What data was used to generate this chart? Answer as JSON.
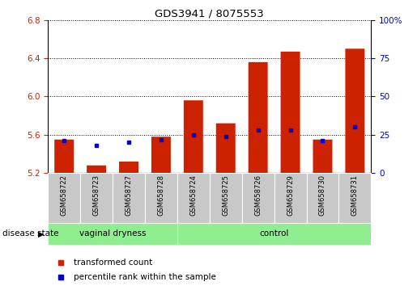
{
  "title": "GDS3941 / 8075553",
  "samples": [
    "GSM658722",
    "GSM658723",
    "GSM658727",
    "GSM658728",
    "GSM658724",
    "GSM658725",
    "GSM658726",
    "GSM658729",
    "GSM658730",
    "GSM658731"
  ],
  "group_labels": [
    "vaginal dryness",
    "control"
  ],
  "group1_count": 4,
  "group2_count": 6,
  "bar_bottom": 5.2,
  "bar_values": [
    5.55,
    5.28,
    5.32,
    5.58,
    5.96,
    5.72,
    6.36,
    6.47,
    5.55,
    6.5
  ],
  "percentile_values": [
    21,
    18,
    20,
    22,
    25,
    24,
    28,
    28,
    21,
    30
  ],
  "ylim_left": [
    5.2,
    6.8
  ],
  "yticks_left": [
    5.2,
    5.6,
    6.0,
    6.4,
    6.8
  ],
  "ylim_right": [
    0,
    100
  ],
  "yticks_right": [
    0,
    25,
    50,
    75,
    100
  ],
  "yticklabels_right": [
    "0",
    "25",
    "50",
    "75",
    "100%"
  ],
  "bar_color": "#CC2200",
  "percentile_color": "#0000CC",
  "group_bg_color": "#90EE90",
  "label_bg_color": "#c8c8c8",
  "legend_red_label": "transformed count",
  "legend_blue_label": "percentile rank within the sample",
  "disease_state_label": "disease state"
}
